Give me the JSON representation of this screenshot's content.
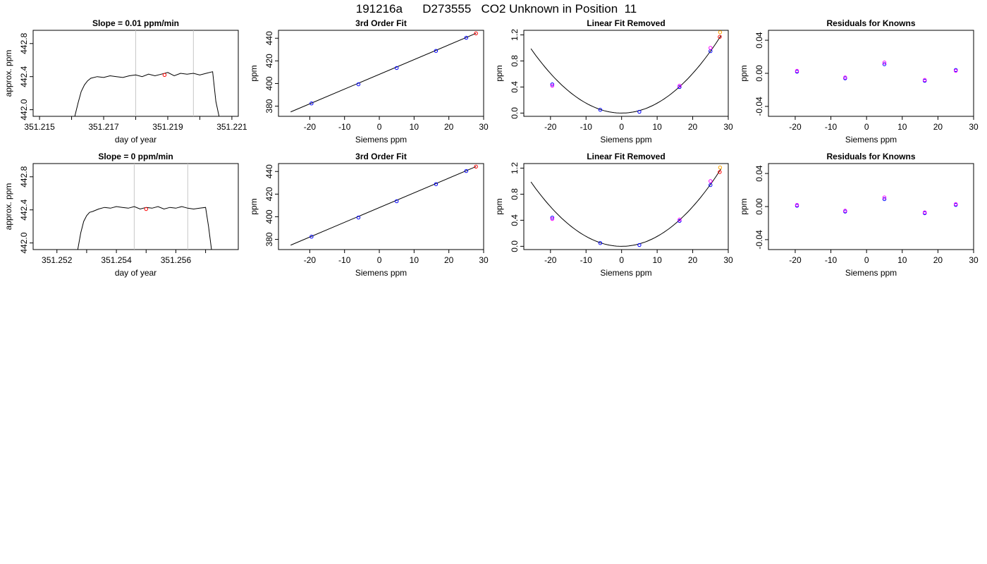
{
  "figure": {
    "title": "191216a      D273555   CO2 Unknown in Position  11"
  },
  "chart_data": [
    {
      "type": "line",
      "title": "Slope =  0.01  ppm/min",
      "xlabel": "day of year",
      "ylabel": "approx. ppm",
      "xlim": [
        351.2148,
        351.2212
      ],
      "ylim": [
        441.92,
        442.96
      ],
      "xticks": [
        351.215,
        351.216,
        351.217,
        351.218,
        351.219,
        351.22,
        351.221
      ],
      "xtick_labels": [
        "351.215",
        "",
        "351.217",
        "",
        "351.219",
        "",
        "351.221"
      ],
      "yticks": [
        442.0,
        442.4,
        442.8
      ],
      "ytick_labels": [
        "442.0",
        "442.4",
        "442.8"
      ],
      "vlines": [
        351.218,
        351.2198
      ],
      "series": [
        {
          "x": [
            351.2161,
            351.2162,
            351.2163,
            351.2164,
            351.2165,
            351.2166,
            351.2168,
            351.217,
            351.2172,
            351.2174,
            351.2176,
            351.2178,
            351.218,
            351.2182,
            351.2184,
            351.2186,
            351.2188,
            351.219,
            351.2192,
            351.2194,
            351.2196,
            351.2198,
            351.22,
            351.2202,
            351.2204,
            351.2205,
            351.2206
          ],
          "y": [
            441.92,
            442.08,
            442.22,
            442.3,
            442.35,
            442.38,
            442.4,
            442.39,
            442.41,
            442.4,
            442.39,
            442.41,
            442.42,
            442.4,
            442.43,
            442.41,
            442.43,
            442.45,
            442.41,
            442.44,
            442.43,
            442.44,
            442.42,
            442.44,
            442.46,
            442.1,
            441.92
          ]
        }
      ],
      "points": [
        {
          "x": 351.2189,
          "y": 442.42,
          "color": "#ff0000"
        }
      ]
    },
    {
      "type": "scatter",
      "title": "3rd Order Fit",
      "xlabel": "Siemens ppm",
      "ylabel": "ppm",
      "xlim": [
        -29,
        30
      ],
      "ylim": [
        371,
        447
      ],
      "xticks": [
        -20,
        -10,
        0,
        10,
        20,
        30
      ],
      "xtick_labels": [
        "-20",
        "-10",
        "0",
        "10",
        "20",
        "30"
      ],
      "yticks": [
        380,
        400,
        420,
        440
      ],
      "ytick_labels": [
        "380",
        "400",
        "420",
        "440"
      ],
      "fit_line": {
        "x": [
          -25.5,
          27.8
        ],
        "y": [
          374.9,
          444.3
        ]
      },
      "points": [
        {
          "x": -19.5,
          "y": 382.4,
          "color": "#0000ff"
        },
        {
          "x": -6,
          "y": 399.3,
          "color": "#0000ff"
        },
        {
          "x": 5,
          "y": 413.7,
          "color": "#0000ff"
        },
        {
          "x": 16.3,
          "y": 428.8,
          "color": "#0000ff"
        },
        {
          "x": 25,
          "y": 440.4,
          "color": "#0000ff"
        },
        {
          "x": 27.8,
          "y": 444.3,
          "color": "#ff0000"
        }
      ]
    },
    {
      "type": "scatter",
      "title": "Linear Fit Removed",
      "xlabel": "Siemens ppm",
      "ylabel": "ppm",
      "xlim": [
        -27.5,
        30
      ],
      "ylim": [
        -0.05,
        1.27
      ],
      "xticks": [
        -20,
        -10,
        0,
        10,
        20,
        30
      ],
      "xtick_labels": [
        "-20",
        "-10",
        "0",
        "10",
        "20",
        "30"
      ],
      "yticks": [
        0.0,
        0.4,
        0.8,
        1.2
      ],
      "ytick_labels": [
        "0.0",
        "0.4",
        "0.8",
        "1.2"
      ],
      "curve": {
        "a": 0.00152,
        "x0": 0,
        "y0": 0.0,
        "xmin": -25.5,
        "xmax": 28
      },
      "points": [
        {
          "x": -19.5,
          "y": 0.44,
          "color": "#0000ff"
        },
        {
          "x": -19.5,
          "y": 0.42,
          "color": "#ff00ff"
        },
        {
          "x": -6,
          "y": 0.05,
          "color": "#0000ff"
        },
        {
          "x": 5,
          "y": 0.02,
          "color": "#0000ff"
        },
        {
          "x": 16.3,
          "y": 0.4,
          "color": "#0000ff"
        },
        {
          "x": 16.3,
          "y": 0.42,
          "color": "#ff00ff"
        },
        {
          "x": 25,
          "y": 0.95,
          "color": "#0000ff"
        },
        {
          "x": 25,
          "y": 1.0,
          "color": "#ff00ff"
        },
        {
          "x": 27.6,
          "y": 1.17,
          "color": "#ff0000"
        },
        {
          "x": 27.7,
          "y": 1.24,
          "color": "#ffa500"
        }
      ]
    },
    {
      "type": "scatter",
      "title": "Residuals for Knowns",
      "xlabel": "Siemens ppm",
      "ylabel": "ppm",
      "xlim": [
        -27.5,
        30
      ],
      "ylim": [
        -0.052,
        0.052
      ],
      "xticks": [
        -20,
        -10,
        0,
        10,
        20,
        30
      ],
      "xtick_labels": [
        "-20",
        "-10",
        "0",
        "10",
        "20",
        "30"
      ],
      "yticks": [
        -0.04,
        0.0,
        0.04
      ],
      "ytick_labels": [
        "-0.04",
        "0.00",
        "0.04"
      ],
      "points": [
        {
          "x": -19.5,
          "y": 0.002,
          "color": "#0000ff"
        },
        {
          "x": -19.5,
          "y": 0.003,
          "color": "#ff00ff"
        },
        {
          "x": -6,
          "y": -0.006,
          "color": "#0000ff"
        },
        {
          "x": -6,
          "y": -0.005,
          "color": "#ff00ff"
        },
        {
          "x": 5,
          "y": 0.011,
          "color": "#0000ff"
        },
        {
          "x": 5,
          "y": 0.013,
          "color": "#ff00ff"
        },
        {
          "x": 16.3,
          "y": -0.009,
          "color": "#0000ff"
        },
        {
          "x": 16.3,
          "y": -0.008,
          "color": "#ff00ff"
        },
        {
          "x": 25,
          "y": 0.004,
          "color": "#0000ff"
        },
        {
          "x": 25,
          "y": 0.003,
          "color": "#ff00ff"
        }
      ]
    },
    {
      "type": "line",
      "title": "Slope =  0  ppm/min",
      "xlabel": "day of year",
      "ylabel": "approx. ppm",
      "xlim": [
        351.2512,
        351.2581
      ],
      "ylim": [
        441.92,
        442.96
      ],
      "xticks": [
        351.252,
        351.253,
        351.254,
        351.255,
        351.256,
        351.257
      ],
      "xtick_labels": [
        "351.252",
        "",
        "351.254",
        "",
        "351.256",
        ""
      ],
      "yticks": [
        442.0,
        442.4,
        442.8
      ],
      "ytick_labels": [
        "442.0",
        "442.4",
        "442.8"
      ],
      "vlines": [
        351.2546,
        351.2564
      ],
      "series": [
        {
          "x": [
            351.2527,
            351.2528,
            351.2529,
            351.253,
            351.2531,
            351.2532,
            351.2534,
            351.2536,
            351.2538,
            351.254,
            351.2542,
            351.2544,
            351.2546,
            351.2548,
            351.255,
            351.2552,
            351.2554,
            351.2556,
            351.2558,
            351.256,
            351.2562,
            351.2564,
            351.2566,
            351.2568,
            351.257,
            351.2571,
            351.2572
          ],
          "y": [
            441.92,
            442.12,
            442.26,
            442.33,
            442.37,
            442.38,
            442.41,
            442.43,
            442.42,
            442.44,
            442.43,
            442.42,
            442.44,
            442.41,
            442.43,
            442.42,
            442.44,
            442.41,
            442.43,
            442.42,
            442.44,
            442.42,
            442.41,
            442.42,
            442.43,
            442.2,
            441.92
          ]
        }
      ],
      "points": [
        {
          "x": 351.255,
          "y": 442.41,
          "color": "#ff0000"
        }
      ]
    },
    {
      "type": "scatter",
      "title": "3rd Order Fit",
      "xlabel": "Siemens ppm",
      "ylabel": "ppm",
      "xlim": [
        -29,
        30
      ],
      "ylim": [
        371,
        447
      ],
      "xticks": [
        -20,
        -10,
        0,
        10,
        20,
        30
      ],
      "xtick_labels": [
        "-20",
        "-10",
        "0",
        "10",
        "20",
        "30"
      ],
      "yticks": [
        380,
        400,
        420,
        440
      ],
      "ytick_labels": [
        "380",
        "400",
        "420",
        "440"
      ],
      "fit_line": {
        "x": [
          -25.5,
          27.8
        ],
        "y": [
          374.9,
          444.3
        ]
      },
      "points": [
        {
          "x": -19.5,
          "y": 382.4,
          "color": "#0000ff"
        },
        {
          "x": -6,
          "y": 399.3,
          "color": "#0000ff"
        },
        {
          "x": 5,
          "y": 413.7,
          "color": "#0000ff"
        },
        {
          "x": 16.3,
          "y": 428.8,
          "color": "#0000ff"
        },
        {
          "x": 25,
          "y": 440.4,
          "color": "#0000ff"
        },
        {
          "x": 27.8,
          "y": 444.3,
          "color": "#ff0000"
        }
      ]
    },
    {
      "type": "scatter",
      "title": "Linear Fit Removed",
      "xlabel": "Siemens ppm",
      "ylabel": "ppm",
      "xlim": [
        -27.5,
        30
      ],
      "ylim": [
        -0.05,
        1.27
      ],
      "xticks": [
        -20,
        -10,
        0,
        10,
        20,
        30
      ],
      "xtick_labels": [
        "-20",
        "-10",
        "0",
        "10",
        "20",
        "30"
      ],
      "yticks": [
        0.0,
        0.4,
        0.8,
        1.2
      ],
      "ytick_labels": [
        "0.0",
        "0.4",
        "0.8",
        "1.2"
      ],
      "curve": {
        "a": 0.00152,
        "x0": 0,
        "y0": 0.0,
        "xmin": -25.5,
        "xmax": 28
      },
      "points": [
        {
          "x": -19.5,
          "y": 0.44,
          "color": "#0000ff"
        },
        {
          "x": -19.5,
          "y": 0.42,
          "color": "#ff00ff"
        },
        {
          "x": -6,
          "y": 0.05,
          "color": "#0000ff"
        },
        {
          "x": 5,
          "y": 0.02,
          "color": "#0000ff"
        },
        {
          "x": 16.3,
          "y": 0.39,
          "color": "#0000ff"
        },
        {
          "x": 16.3,
          "y": 0.41,
          "color": "#ff00ff"
        },
        {
          "x": 25,
          "y": 0.94,
          "color": "#0000ff"
        },
        {
          "x": 25,
          "y": 1.0,
          "color": "#ff00ff"
        },
        {
          "x": 27.6,
          "y": 1.14,
          "color": "#ff0000"
        },
        {
          "x": 27.7,
          "y": 1.21,
          "color": "#ffa500"
        }
      ]
    },
    {
      "type": "scatter",
      "title": "Residuals for Knowns",
      "xlabel": "Siemens ppm",
      "ylabel": "ppm",
      "xlim": [
        -27.5,
        30
      ],
      "ylim": [
        -0.052,
        0.052
      ],
      "xticks": [
        -20,
        -10,
        0,
        10,
        20,
        30
      ],
      "xtick_labels": [
        "-20",
        "-10",
        "0",
        "10",
        "20",
        "30"
      ],
      "yticks": [
        -0.04,
        0.0,
        0.04
      ],
      "ytick_labels": [
        "-0.04",
        "0.00",
        "0.04"
      ],
      "points": [
        {
          "x": -19.5,
          "y": 0.001,
          "color": "#0000ff"
        },
        {
          "x": -19.5,
          "y": 0.002,
          "color": "#ff00ff"
        },
        {
          "x": -6,
          "y": -0.006,
          "color": "#0000ff"
        },
        {
          "x": -6,
          "y": -0.005,
          "color": "#ff00ff"
        },
        {
          "x": 5,
          "y": 0.009,
          "color": "#0000ff"
        },
        {
          "x": 5,
          "y": 0.011,
          "color": "#ff00ff"
        },
        {
          "x": 16.3,
          "y": -0.008,
          "color": "#0000ff"
        },
        {
          "x": 16.3,
          "y": -0.007,
          "color": "#ff00ff"
        },
        {
          "x": 25,
          "y": 0.002,
          "color": "#0000ff"
        },
        {
          "x": 25,
          "y": 0.003,
          "color": "#ff00ff"
        }
      ]
    }
  ]
}
